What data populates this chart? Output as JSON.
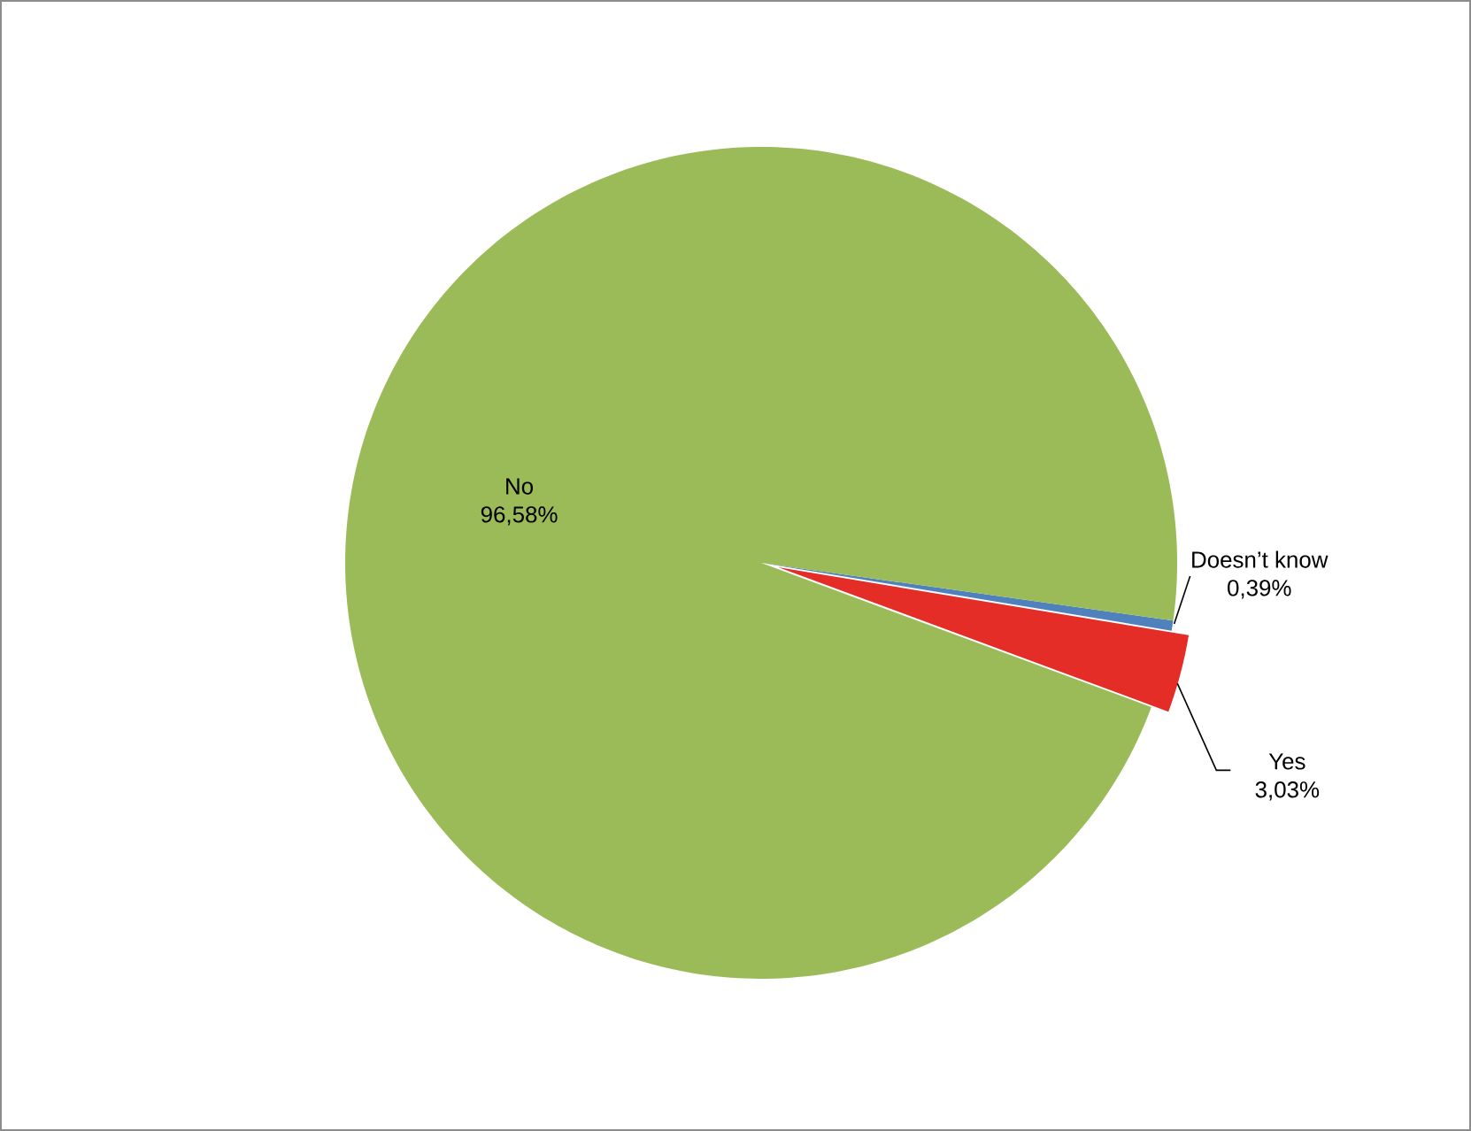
{
  "chart_data": {
    "type": "pie",
    "categories": [
      "Yes",
      "Doesn’t know",
      "No"
    ],
    "values": [
      3.03,
      0.39,
      96.58
    ],
    "value_labels": [
      "3,03%",
      "0,39%",
      "96,58%"
    ],
    "colors": [
      "#e52d27",
      "#4f81bd",
      "#9bbb59"
    ]
  }
}
